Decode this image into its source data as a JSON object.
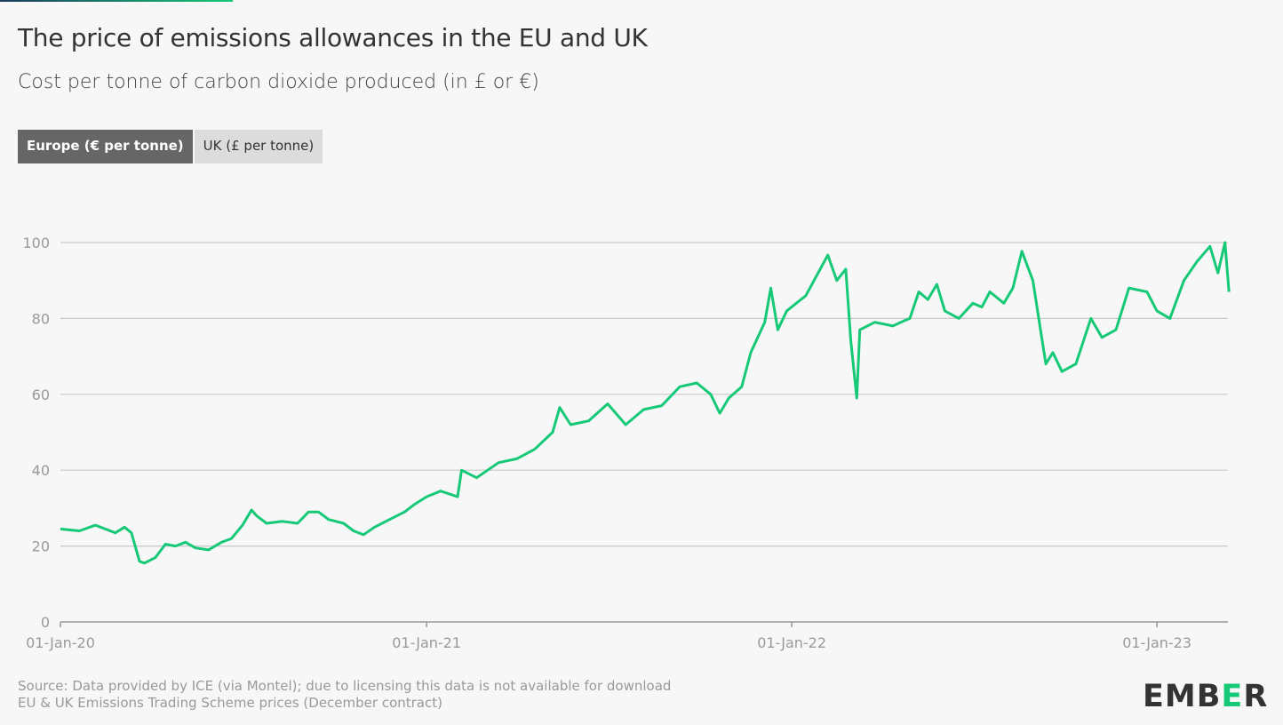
{
  "title": "The price of emissions allowances in the EU and UK",
  "subtitle": "Cost per tonne of carbon dioxide produced (in £ or €)",
  "tabs": [
    {
      "label": "Europe (€ per tonne)",
      "active": true
    },
    {
      "label": "UK (£ per tonne)",
      "active": false
    }
  ],
  "source_lines": [
    "Source: Data provided by ICE (via Montel); due to licensing this data is not available for download",
    "EU & UK Emissions Trading Scheme prices (December contract)"
  ],
  "logo": {
    "text": "EMBER",
    "accent_color": "#16c977"
  },
  "chart_data": {
    "type": "line",
    "title": "",
    "xlabel": "",
    "ylabel": "",
    "ylim": [
      0,
      100
    ],
    "yticks": [
      0,
      20,
      40,
      60,
      80,
      100
    ],
    "xlim": [
      "2020-01-01",
      "2023-03-14"
    ],
    "xticks": [
      {
        "date": "2020-01-01",
        "label": "01-Jan-20"
      },
      {
        "date": "2021-01-01",
        "label": "01-Jan-21"
      },
      {
        "date": "2022-01-01",
        "label": "01-Jan-22"
      },
      {
        "date": "2023-01-01",
        "label": "01-Jan-23"
      }
    ],
    "grid": true,
    "series": [
      {
        "color": "#16c977",
        "points": [
          [
            "2020-01-01",
            24.5
          ],
          [
            "2020-01-20",
            24
          ],
          [
            "2020-02-05",
            25.5
          ],
          [
            "2020-02-25",
            23.5
          ],
          [
            "2020-03-05",
            25
          ],
          [
            "2020-03-12",
            23.5
          ],
          [
            "2020-03-20",
            16
          ],
          [
            "2020-03-25",
            15.5
          ],
          [
            "2020-04-05",
            17
          ],
          [
            "2020-04-15",
            20.5
          ],
          [
            "2020-04-25",
            20
          ],
          [
            "2020-05-05",
            21
          ],
          [
            "2020-05-15",
            19.5
          ],
          [
            "2020-05-28",
            19
          ],
          [
            "2020-06-10",
            21
          ],
          [
            "2020-06-20",
            22
          ],
          [
            "2020-07-01",
            25.5
          ],
          [
            "2020-07-10",
            29.5
          ],
          [
            "2020-07-15",
            28
          ],
          [
            "2020-07-25",
            26
          ],
          [
            "2020-08-10",
            26.5
          ],
          [
            "2020-08-25",
            26
          ],
          [
            "2020-09-05",
            29
          ],
          [
            "2020-09-15",
            29
          ],
          [
            "2020-09-25",
            27
          ],
          [
            "2020-10-10",
            26
          ],
          [
            "2020-10-20",
            24
          ],
          [
            "2020-10-30",
            23
          ],
          [
            "2020-11-10",
            25
          ],
          [
            "2020-11-25",
            27
          ],
          [
            "2020-12-10",
            29
          ],
          [
            "2020-12-20",
            31
          ],
          [
            "2021-01-01",
            33
          ],
          [
            "2021-01-15",
            34.5
          ],
          [
            "2021-02-01",
            33
          ],
          [
            "2021-02-05",
            40
          ],
          [
            "2021-02-20",
            38
          ],
          [
            "2021-03-14",
            42
          ],
          [
            "2021-04-01",
            43
          ],
          [
            "2021-04-19",
            45.5
          ],
          [
            "2021-05-07",
            50
          ],
          [
            "2021-05-14",
            56.5
          ],
          [
            "2021-05-25",
            52
          ],
          [
            "2021-06-12",
            53
          ],
          [
            "2021-07-01",
            57.5
          ],
          [
            "2021-07-19",
            52
          ],
          [
            "2021-08-06",
            56
          ],
          [
            "2021-08-24",
            57
          ],
          [
            "2021-09-11",
            62
          ],
          [
            "2021-09-28",
            63
          ],
          [
            "2021-10-12",
            60
          ],
          [
            "2021-10-21",
            55
          ],
          [
            "2021-10-30",
            59
          ],
          [
            "2021-11-12",
            62
          ],
          [
            "2021-11-21",
            71
          ],
          [
            "2021-12-05",
            79
          ],
          [
            "2021-12-11",
            88
          ],
          [
            "2021-12-18",
            77
          ],
          [
            "2021-12-27",
            82
          ],
          [
            "2022-01-15",
            86
          ],
          [
            "2022-02-06",
            96.7
          ],
          [
            "2022-02-15",
            90
          ],
          [
            "2022-02-24",
            93
          ],
          [
            "2022-03-01",
            74
          ],
          [
            "2022-03-07",
            59
          ],
          [
            "2022-03-10",
            77
          ],
          [
            "2022-03-25",
            79
          ],
          [
            "2022-04-12",
            78
          ],
          [
            "2022-04-20",
            79
          ],
          [
            "2022-04-29",
            80
          ],
          [
            "2022-05-08",
            87
          ],
          [
            "2022-05-17",
            85
          ],
          [
            "2022-05-26",
            89
          ],
          [
            "2022-06-03",
            82
          ],
          [
            "2022-06-17",
            80
          ],
          [
            "2022-07-01",
            84
          ],
          [
            "2022-07-10",
            83
          ],
          [
            "2022-07-18",
            87
          ],
          [
            "2022-08-01",
            84
          ],
          [
            "2022-08-10",
            88
          ],
          [
            "2022-08-19",
            97.7
          ],
          [
            "2022-08-30",
            90
          ],
          [
            "2022-09-06",
            78
          ],
          [
            "2022-09-12",
            68
          ],
          [
            "2022-09-19",
            71
          ],
          [
            "2022-09-28",
            66
          ],
          [
            "2022-10-12",
            68
          ],
          [
            "2022-10-27",
            80
          ],
          [
            "2022-11-07",
            75
          ],
          [
            "2022-11-21",
            77
          ],
          [
            "2022-12-04",
            88
          ],
          [
            "2022-12-22",
            87
          ],
          [
            "2023-01-01",
            82
          ],
          [
            "2023-01-14",
            80
          ],
          [
            "2023-01-28",
            90
          ],
          [
            "2023-02-10",
            95
          ],
          [
            "2023-02-23",
            99
          ],
          [
            "2023-03-03",
            92
          ],
          [
            "2023-03-10",
            100
          ],
          [
            "2023-03-14",
            87
          ]
        ]
      }
    ]
  }
}
